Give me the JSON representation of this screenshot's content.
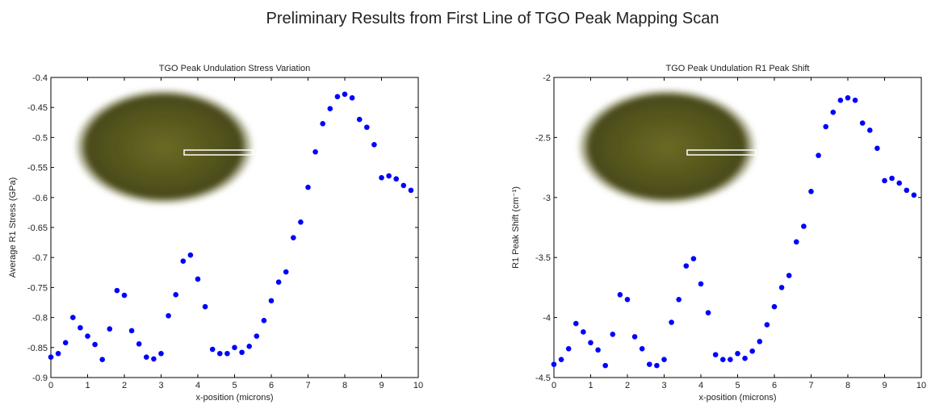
{
  "title": "Preliminary Results from First Line of TGO Peak Mapping Scan",
  "chart_data": [
    {
      "type": "scatter",
      "title": "TGO Peak Undulation Stress Variation",
      "x_label": "x-position (microns)",
      "y_label": "Average R1 Stress (GPa)",
      "color": "#0000ff",
      "x": [
        0,
        0.2,
        0.4,
        0.6,
        0.8,
        1.0,
        1.2,
        1.4,
        1.6,
        1.8,
        2.0,
        2.2,
        2.4,
        2.6,
        2.8,
        3.0,
        3.2,
        3.4,
        3.6,
        3.8,
        4.0,
        4.2,
        4.4,
        4.6,
        4.8,
        5.0,
        5.2,
        5.4,
        5.6,
        5.8,
        6.0,
        6.2,
        6.4,
        6.6,
        6.8,
        7.0,
        7.2,
        7.4,
        7.6,
        7.8,
        8.0,
        8.2,
        8.4,
        8.6,
        8.8,
        9.0,
        9.2,
        9.4,
        9.6,
        9.8
      ],
      "values": [
        -0.866,
        -0.86,
        -0.842,
        -0.8,
        -0.817,
        -0.831,
        -0.845,
        -0.87,
        -0.819,
        -0.755,
        -0.763,
        -0.822,
        -0.844,
        -0.866,
        -0.869,
        -0.86,
        -0.797,
        -0.762,
        -0.706,
        -0.696,
        -0.736,
        -0.782,
        -0.853,
        -0.86,
        -0.86,
        -0.85,
        -0.858,
        -0.848,
        -0.831,
        -0.805,
        -0.772,
        -0.741,
        -0.724,
        -0.667,
        -0.641,
        -0.583,
        -0.524,
        -0.477,
        -0.452,
        -0.432,
        -0.428,
        -0.434,
        -0.47,
        -0.483,
        -0.512,
        -0.567,
        -0.564,
        -0.569,
        -0.58,
        -0.588
      ],
      "xlim": [
        0,
        10
      ],
      "xticks": [
        0,
        1,
        2,
        3,
        4,
        5,
        6,
        7,
        8,
        9,
        10
      ],
      "ylim": [
        -0.9,
        -0.4
      ],
      "yticks": [
        -0.9,
        -0.85,
        -0.8,
        -0.75,
        -0.7,
        -0.65,
        -0.6,
        -0.55,
        -0.5,
        -0.45,
        -0.4
      ]
    },
    {
      "type": "scatter",
      "title": "TGO Peak Undulation R1 Peak Shift",
      "x_label": "x-position (microns)",
      "y_label": "R1 Peak Shift (cm⁻¹)",
      "color": "#0000ff",
      "x": [
        0,
        0.2,
        0.4,
        0.6,
        0.8,
        1.0,
        1.2,
        1.4,
        1.6,
        1.8,
        2.0,
        2.2,
        2.4,
        2.6,
        2.8,
        3.0,
        3.2,
        3.4,
        3.6,
        3.8,
        4.0,
        4.2,
        4.4,
        4.6,
        4.8,
        5.0,
        5.2,
        5.4,
        5.6,
        5.8,
        6.0,
        6.2,
        6.4,
        6.6,
        6.8,
        7.0,
        7.2,
        7.4,
        7.6,
        7.8,
        8.0,
        8.2,
        8.4,
        8.6,
        8.8,
        9.0,
        9.2,
        9.4,
        9.6,
        9.8
      ],
      "values": [
        -4.39,
        -4.35,
        -4.26,
        -4.05,
        -4.12,
        -4.21,
        -4.27,
        -4.4,
        -4.14,
        -3.81,
        -3.85,
        -4.16,
        -4.26,
        -4.39,
        -4.4,
        -4.35,
        -4.04,
        -3.85,
        -3.57,
        -3.51,
        -3.72,
        -3.96,
        -4.31,
        -4.35,
        -4.35,
        -4.3,
        -4.34,
        -4.28,
        -4.2,
        -4.06,
        -3.91,
        -3.75,
        -3.65,
        -3.37,
        -3.24,
        -2.95,
        -2.65,
        -2.41,
        -2.29,
        -2.19,
        -2.17,
        -2.19,
        -2.38,
        -2.44,
        -2.59,
        -2.86,
        -2.84,
        -2.88,
        -2.94,
        -2.98
      ],
      "xlim": [
        0,
        10
      ],
      "xticks": [
        0,
        1,
        2,
        3,
        4,
        5,
        6,
        7,
        8,
        9,
        10
      ],
      "ylim": [
        -4.5,
        -2
      ],
      "yticks": [
        -4.5,
        -4,
        -3.5,
        -3,
        -2.5,
        -2
      ]
    }
  ]
}
